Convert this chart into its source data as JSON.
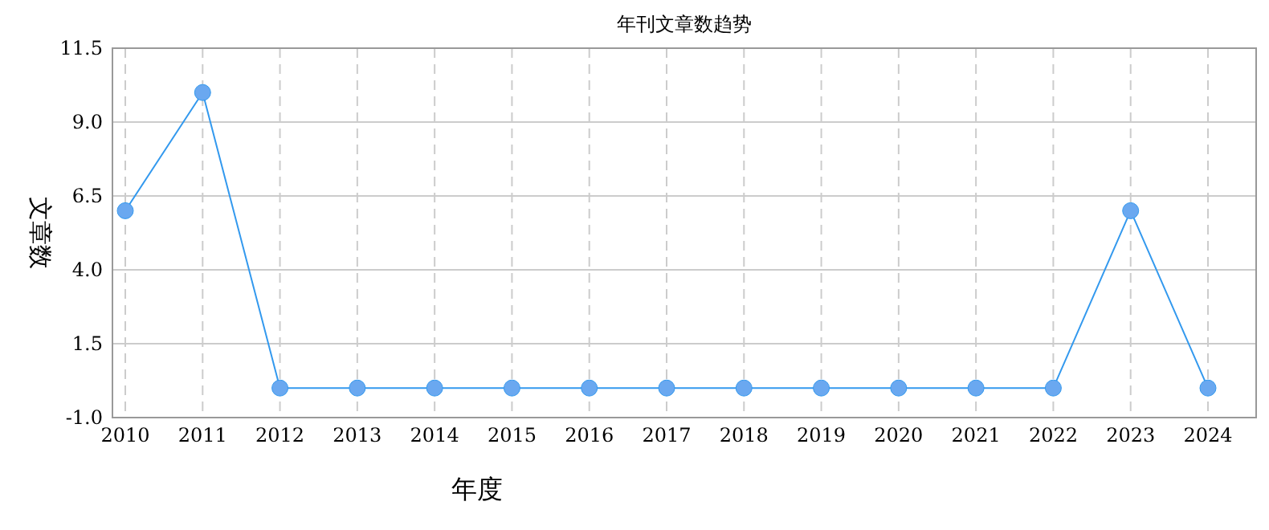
{
  "chart_data": {
    "type": "line",
    "title": "年刊文章数趋势",
    "xlabel": "年度",
    "ylabel": "文章数",
    "categories": [
      "2010",
      "2011",
      "2012",
      "2013",
      "2014",
      "2015",
      "2016",
      "2017",
      "2018",
      "2019",
      "2020",
      "2021",
      "2022",
      "2023",
      "2024"
    ],
    "series": [
      {
        "color": "#3399ee",
        "values": [
          6,
          10,
          0,
          0,
          0,
          0,
          0,
          0,
          0,
          0,
          0,
          0,
          0,
          6,
          0
        ]
      }
    ],
    "ylim": [
      -1,
      11.5
    ],
    "yticks": [
      {
        "value": -1,
        "label": "-1.0"
      },
      {
        "value": 1.5,
        "label": "1.5"
      },
      {
        "value": 4,
        "label": "4.0"
      },
      {
        "value": 6.5,
        "label": "6.5"
      },
      {
        "value": 9,
        "label": "9.0"
      },
      {
        "value": 11.5,
        "label": "11.5"
      }
    ],
    "grid": true,
    "marker": "circle"
  }
}
